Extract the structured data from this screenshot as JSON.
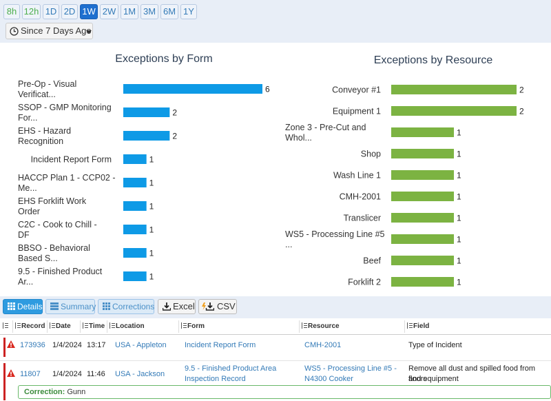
{
  "time_ranges": [
    {
      "label": "8h",
      "color": "green"
    },
    {
      "label": "12h",
      "color": "green"
    },
    {
      "label": "1D",
      "color": "blue"
    },
    {
      "label": "2D",
      "color": "blue"
    },
    {
      "label": "1W",
      "color": "active"
    },
    {
      "label": "2W",
      "color": "blue"
    },
    {
      "label": "1M",
      "color": "blue"
    },
    {
      "label": "3M",
      "color": "blue"
    },
    {
      "label": "6M",
      "color": "blue"
    },
    {
      "label": "1Y",
      "color": "blue"
    }
  ],
  "since_dropdown": {
    "label": "Since 7 Days Ago",
    "icon": "clock-icon"
  },
  "chart_data": [
    {
      "type": "bar",
      "orientation": "horizontal",
      "title": "Exceptions by Form",
      "categories": [
        "Pre-Op - Visual Verificat...",
        "SSOP - GMP Monitoring For...",
        "EHS - Hazard Recognition",
        "Incident Report Form",
        "HACCP Plan 1 - CCP02 - Me...",
        "EHS Forklift Work Order",
        "C2C - Cook to Chill - DF",
        "BBSO - Behavioral Based S...",
        "9.5 - Finished Product Ar..."
      ],
      "values": [
        6,
        2,
        2,
        1,
        1,
        1,
        1,
        1,
        1
      ],
      "color": "#0e9ae6",
      "xlim": [
        0,
        6
      ]
    },
    {
      "type": "bar",
      "orientation": "horizontal",
      "title": "Exceptions by Resource",
      "categories": [
        "Conveyor #1",
        "Equipment 1",
        "Zone 3 - Pre-Cut and Whol...",
        "Shop",
        "Wash Line 1",
        "CMH-2001",
        "Translicer",
        "WS5 - Processing Line #5 ...",
        "Beef",
        "Forklift 2"
      ],
      "values": [
        2,
        2,
        1,
        1,
        1,
        1,
        1,
        1,
        1,
        1
      ],
      "color": "#7cb342",
      "xlim": [
        0,
        2
      ]
    }
  ],
  "toolbar": {
    "details": "Details",
    "summary": "Summary",
    "corrections": "Corrections",
    "excel": "Excel",
    "csv": "CSV"
  },
  "grid": {
    "headers": [
      "Record",
      "Date",
      "Time",
      "Location",
      "Form",
      "Resource",
      "Field"
    ],
    "rows": [
      {
        "record": "173936",
        "date": "1/4/2024",
        "time": "13:17",
        "location": "USA - Appleton",
        "form": "Incident Report Form",
        "form2": "",
        "resource": "CMH-2001",
        "resource2": "",
        "field": "Type of Incident",
        "field2": ""
      },
      {
        "record": "11807",
        "date": "1/4/2024",
        "time": "11:46",
        "location": "USA - Jackson",
        "form": "9.5 - Finished Product Area",
        "form2": "Inspection Record",
        "resource": "WS5 - Processing Line #5 -",
        "resource2": "N4300 Cooker",
        "field": "Remove all dust and spilled food from floors",
        "field2": "and equipment"
      }
    ],
    "correction_label": "Correction:",
    "correction_value": "Gunn"
  }
}
